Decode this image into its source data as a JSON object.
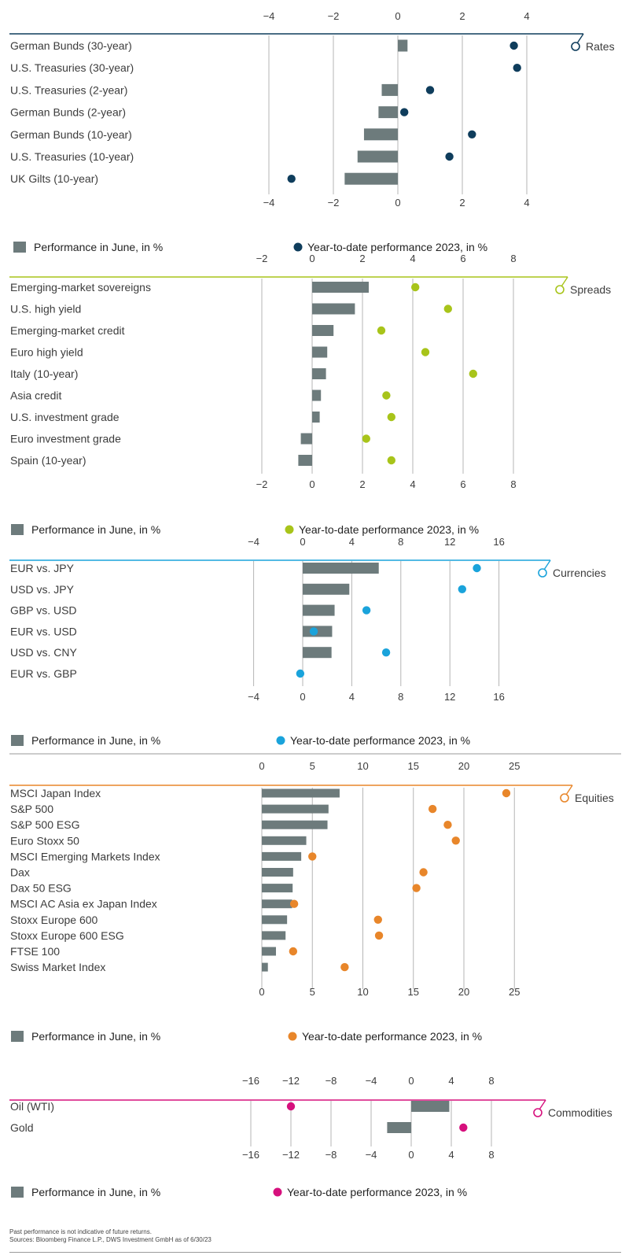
{
  "chart_data": [
    {
      "type": "bar",
      "section": "Rates",
      "accent": "#0f3d5c",
      "xlim": [
        -4,
        5
      ],
      "ticks": [
        -4,
        -2,
        0,
        2,
        4
      ],
      "tick_labels": [
        "−4",
        "−2",
        "0",
        "2",
        "4"
      ],
      "categories": [
        "German Bunds (30-year)",
        "U.S. Treasuries (30-year)",
        "U.S. Treasuries (2-year)",
        "German Bunds (2-year)",
        "German Bunds (10-year)",
        "U.S. Treasuries (10-year)",
        "UK Gilts (10-year)"
      ],
      "series": [
        {
          "name": "Performance in June, in %",
          "kind": "bar",
          "color": "#6d7b7c",
          "values": [
            0.3,
            0.0,
            -0.5,
            -0.6,
            -1.05,
            -1.25,
            -1.65
          ]
        },
        {
          "name": "Year-to-date performance 2023, in %",
          "kind": "dot",
          "color": "#0f3d5c",
          "values": [
            3.6,
            3.7,
            1.0,
            0.2,
            2.3,
            1.6,
            -3.3
          ]
        }
      ],
      "legend": {
        "bar": "Performance in June, in %",
        "dot": "Year-to-date performance 2023, in %"
      }
    },
    {
      "type": "bar",
      "section": "Spreads",
      "accent": "#a8c41a",
      "xlim": [
        -2.5,
        10
      ],
      "ticks": [
        -2,
        0,
        2,
        4,
        6,
        8
      ],
      "tick_labels": [
        "−2",
        "0",
        "2",
        "4",
        "6",
        "8"
      ],
      "categories": [
        "Emerging-market sovereigns",
        "U.S. high yield",
        "Emerging-market credit",
        "Euro high yield",
        "Italy (10-year)",
        "Asia credit",
        "U.S. investment grade",
        "Euro investment grade",
        "Spain (10-year)"
      ],
      "series": [
        {
          "name": "Performance in June, in %",
          "kind": "bar",
          "color": "#6d7b7c",
          "values": [
            2.25,
            1.7,
            0.85,
            0.6,
            0.55,
            0.35,
            0.3,
            -0.45,
            -0.55
          ]
        },
        {
          "name": "Year-to-date performance 2023, in %",
          "kind": "dot",
          "color": "#a8c41a",
          "values": [
            4.1,
            5.4,
            2.75,
            4.5,
            6.4,
            2.95,
            3.15,
            2.15,
            3.15
          ]
        }
      ],
      "legend": {
        "bar": "Performance in June, in %",
        "dot": "Year-to-date performance 2023, in %"
      }
    },
    {
      "type": "bar",
      "section": "Currencies",
      "accent": "#1aa3db",
      "xlim": [
        -4,
        20
      ],
      "ticks": [
        -4,
        0,
        4,
        8,
        12,
        16
      ],
      "tick_labels": [
        "−4",
        "0",
        "4",
        "8",
        "12",
        "16"
      ],
      "categories": [
        "EUR vs. JPY",
        "USD vs. JPY",
        "GBP vs. USD",
        "EUR vs. USD",
        "USD vs. CNY",
        "EUR vs. GBP"
      ],
      "series": [
        {
          "name": "Performance in June, in %",
          "kind": "bar",
          "color": "#6d7b7c",
          "values": [
            6.2,
            3.8,
            2.6,
            2.4,
            2.35,
            0.0
          ]
        },
        {
          "name": "Year-to-date performance 2023, in %",
          "kind": "dot",
          "color": "#1aa3db",
          "values": [
            14.2,
            13.0,
            5.2,
            0.9,
            6.8,
            -0.2
          ]
        }
      ],
      "legend": {
        "bar": "Performance in June, in %",
        "dot": "Year-to-date performance 2023, in %"
      }
    },
    {
      "type": "bar",
      "section": "Equities",
      "accent": "#e8862a",
      "xlim": [
        0,
        30
      ],
      "ticks": [
        0,
        5,
        10,
        15,
        20,
        25
      ],
      "tick_labels": [
        "0",
        "5",
        "10",
        "15",
        "20",
        "25"
      ],
      "categories": [
        "MSCI Japan Index",
        "S&P 500",
        "S&P 500 ESG",
        "Euro Stoxx 50",
        "MSCI Emerging Markets Index",
        "Dax",
        "Dax 50 ESG",
        "MSCI AC Asia ex Japan Index",
        "Stoxx Europe 600",
        "Stoxx Europe 600 ESG",
        "FTSE 100",
        "Swiss Market Index"
      ],
      "series": [
        {
          "name": "Performance in June, in %",
          "kind": "bar",
          "color": "#6d7b7c",
          "values": [
            7.7,
            6.6,
            6.5,
            4.4,
            3.9,
            3.1,
            3.05,
            3.0,
            2.5,
            2.35,
            1.4,
            0.6
          ]
        },
        {
          "name": "Year-to-date performance 2023, in %",
          "kind": "dot",
          "color": "#e8862a",
          "values": [
            24.2,
            16.9,
            18.4,
            19.2,
            5.0,
            16.0,
            15.3,
            3.2,
            11.5,
            11.6,
            3.1,
            8.2
          ]
        }
      ],
      "legend": {
        "bar": "Performance in June, in %",
        "dot": "Year-to-date performance 2023, in %"
      }
    },
    {
      "type": "bar",
      "section": "Commodities",
      "accent": "#d6107d",
      "xlim": [
        -16,
        11
      ],
      "ticks": [
        -16,
        -12,
        -8,
        -4,
        0,
        4,
        8
      ],
      "tick_labels": [
        "−16",
        "−12",
        "−8",
        "−4",
        "0",
        "4",
        "8"
      ],
      "categories": [
        "Oil (WTI)",
        "Gold"
      ],
      "series": [
        {
          "name": "Performance in June, in %",
          "kind": "bar",
          "color": "#6d7b7c",
          "values": [
            3.8,
            -2.4
          ]
        },
        {
          "name": "Year-to-date performance 2023, in %",
          "kind": "dot",
          "color": "#d6107d",
          "values": [
            -12.0,
            5.2
          ]
        }
      ],
      "legend": {
        "bar": "Performance in June, in %",
        "dot": "Year-to-date performance 2023, in %"
      }
    }
  ],
  "footnote": {
    "line1": "Past performance is not indicative of future returns.",
    "line2": "Sources: Bloomberg Finance L.P., DWS Investment GmbH as of 6/30/23"
  }
}
